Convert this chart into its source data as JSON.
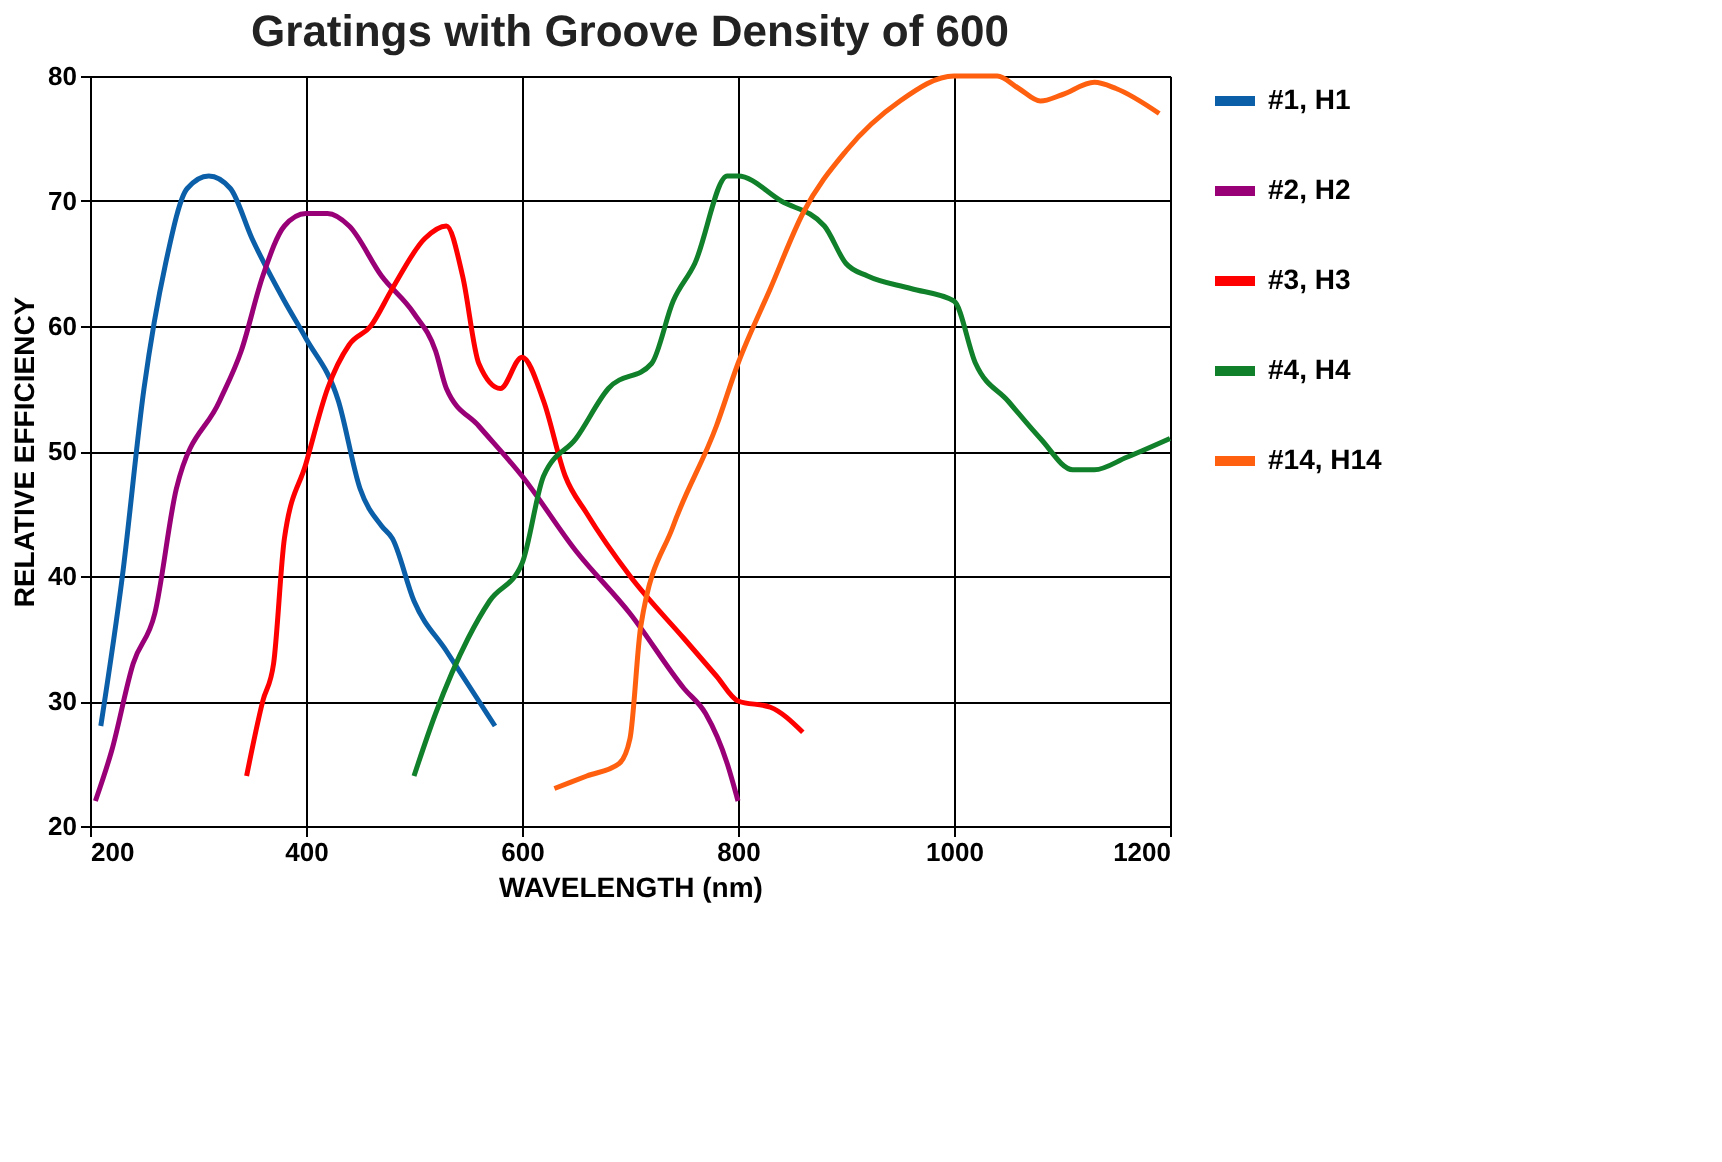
{
  "chart_data": {
    "type": "line",
    "title": "Gratings with Groove Density of 600",
    "xlabel": "WAVELENGTH (nm)",
    "ylabel": "RELATIVE EFFICIENCY",
    "xlim": [
      200,
      1200
    ],
    "xticks": [
      200,
      400,
      600,
      800,
      1000,
      1200
    ],
    "ylim": [
      20,
      80
    ],
    "yticks": [
      20,
      30,
      40,
      50,
      60,
      70,
      80
    ],
    "grid": true,
    "legend": "right",
    "line_style": "solid",
    "series": [
      {
        "name": "#1, H1",
        "color": "#0b5fa8",
        "x": [
          210,
          230,
          250,
          270,
          290,
          310,
          330,
          350,
          380,
          400,
          430,
          450,
          470,
          480,
          500,
          530,
          560,
          575
        ],
        "values": [
          28,
          40,
          55,
          65,
          71,
          72,
          71,
          67,
          62,
          59,
          54,
          47,
          44,
          43,
          38,
          34,
          30,
          28
        ]
      },
      {
        "name": "#2, H2",
        "color": "#990077",
        "x": [
          205,
          220,
          240,
          260,
          280,
          320,
          340,
          360,
          380,
          400,
          420,
          440,
          470,
          500,
          520,
          530,
          560,
          600,
          650,
          700,
          750,
          770,
          790,
          800
        ],
        "values": [
          22,
          26,
          33,
          37,
          47,
          54,
          58,
          64,
          68,
          69,
          69,
          68,
          64,
          61,
          58,
          55,
          52,
          48,
          42,
          37,
          31,
          29,
          25,
          22
        ]
      },
      {
        "name": "#3, H3",
        "color": "#ff0000",
        "x": [
          345,
          360,
          370,
          380,
          400,
          420,
          440,
          460,
          480,
          510,
          530,
          545,
          560,
          580,
          600,
          620,
          640,
          660,
          700,
          750,
          780,
          800,
          830,
          860
        ],
        "values": [
          24,
          30,
          33,
          43,
          49,
          55,
          58.5,
          60,
          63,
          67,
          68,
          64,
          57,
          55,
          57.5,
          54,
          48,
          45,
          40,
          35,
          32,
          30,
          29.5,
          27.5
        ]
      },
      {
        "name": "#4, H4",
        "color": "#11802a",
        "x": [
          500,
          520,
          550,
          570,
          600,
          620,
          650,
          680,
          720,
          740,
          760,
          790,
          800,
          840,
          880,
          900,
          920,
          960,
          1000,
          1020,
          1050,
          1080,
          1110,
          1130,
          1160,
          1200
        ],
        "values": [
          24,
          29,
          35,
          38,
          41,
          48,
          51,
          55,
          57,
          62,
          65,
          72,
          72,
          70,
          68,
          65,
          64,
          63,
          62,
          57,
          54,
          51,
          48.5,
          48.5,
          49.5,
          51
        ]
      },
      {
        "name": "#14, H14",
        "color": "#ff6010",
        "x": [
          630,
          660,
          690,
          700,
          710,
          740,
          780,
          800,
          830,
          860,
          900,
          950,
          1000,
          1040,
          1060,
          1080,
          1100,
          1130,
          1150,
          1190
        ],
        "values": [
          23,
          24,
          25,
          27,
          36,
          44,
          52,
          57,
          63,
          69,
          74,
          78,
          80,
          80,
          79,
          78,
          78.5,
          79.5,
          79,
          77
        ]
      }
    ]
  }
}
